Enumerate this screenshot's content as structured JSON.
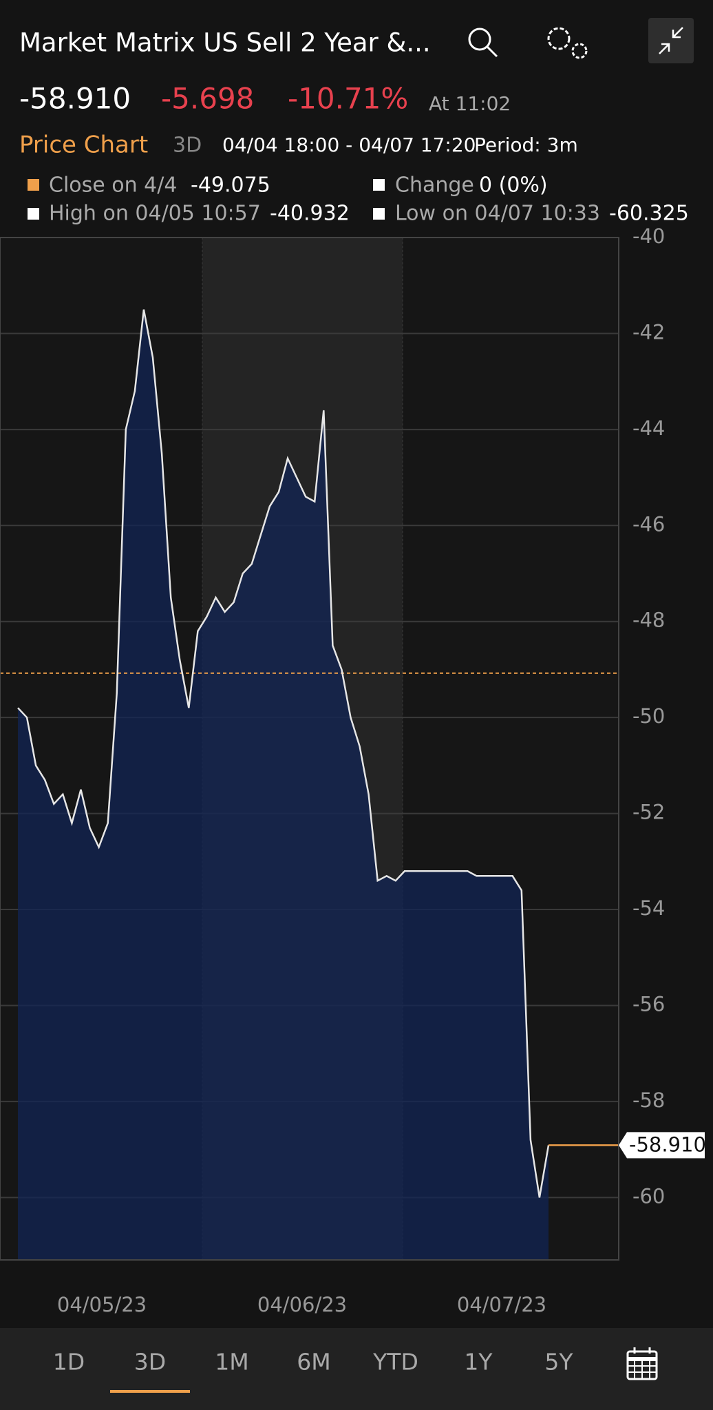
{
  "header": {
    "title": "Market Matrix US Sell 2 Year &...",
    "price": "-58.910",
    "change": "-5.698",
    "change_pct": "-10.71%",
    "time": "At 11:02"
  },
  "subheader": {
    "title": "Price Chart",
    "range": "3D",
    "dates": "04/04 18:00 - 04/07 17:20",
    "period": "Period: 3m"
  },
  "legend": {
    "close_label": "Close on 4/4",
    "change_label": "Change",
    "change_value": "0 (0%)",
    "high_label": "High on 04/05 10:57",
    "high_value": "-40.932",
    "low_label": "Low on 04/07 10:33",
    "low_value": "-60.325"
  },
  "chart_data": {
    "type": "area",
    "close": -49.075,
    "x_labels": [
      "04/05/23",
      "04/06/23",
      "04/07/23"
    ],
    "ylim": [
      -61.3,
      -40
    ],
    "yticks": [
      -60,
      -58,
      -56,
      -54,
      -52,
      -50,
      -48,
      -46,
      -44,
      -42,
      -40
    ],
    "grid": true,
    "series": [
      {
        "color": "#e6e6e6",
        "values": [
          -49.8,
          -50.0,
          -51.0,
          -51.3,
          -51.8,
          -51.6,
          -52.2,
          -51.5,
          -52.3,
          -52.7,
          -52.2,
          -49.5,
          -44.0,
          -43.2,
          -41.5,
          -42.5,
          -44.5,
          -47.5,
          -48.8,
          -49.8,
          -48.2,
          -47.9,
          -47.5,
          -47.8,
          -47.6,
          -47.0,
          -46.8,
          -46.2,
          -45.6,
          -45.3,
          -44.6,
          -45.0,
          -45.4,
          -45.5,
          -43.6,
          -48.5,
          -49.0,
          -50.0,
          -50.6,
          -51.6,
          -53.4,
          -53.3,
          -53.4,
          -53.2,
          -53.2,
          -53.2,
          -53.2,
          -53.2,
          -53.2,
          -53.2,
          -53.2,
          -53.3,
          -53.3,
          -53.3,
          -53.3,
          -53.3,
          -53.6,
          -58.8,
          -60.0,
          -58.91
        ]
      }
    ]
  },
  "tabs": [
    "1D",
    "3D",
    "1M",
    "6M",
    "YTD",
    "1Y",
    "5Y"
  ]
}
